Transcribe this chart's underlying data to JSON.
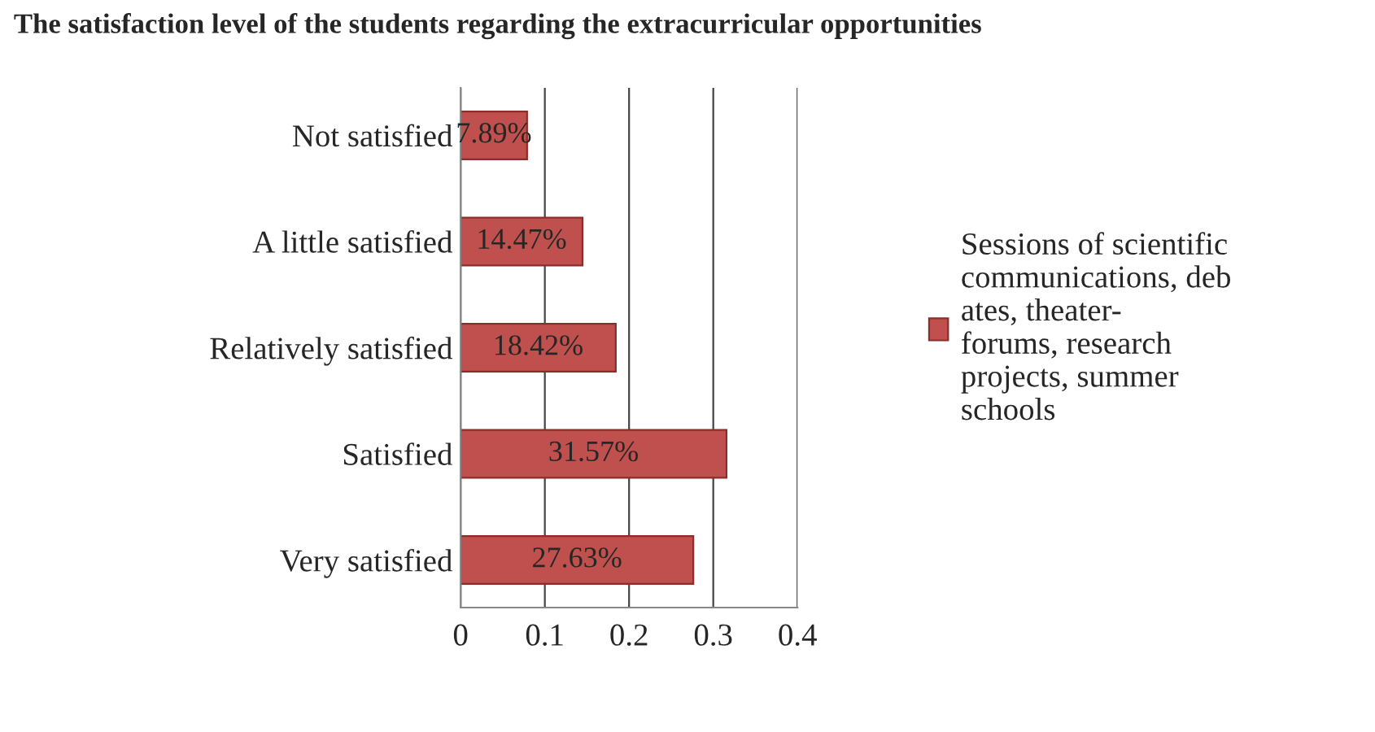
{
  "chart_data": {
    "type": "bar",
    "orientation": "horizontal",
    "title": "The satisfaction level of the students regarding the extracurricular opportunities",
    "categories": [
      "Not satisfied",
      "A little satisfied",
      "Relatively satisfied",
      "Satisfied",
      "Very satisfied"
    ],
    "series": [
      {
        "name": "Sessions of scientific\ncommunications, deb\nates, theater-\nforums, research\nprojects, summer\nschools",
        "color": "#c0504d",
        "values": [
          0.0789,
          0.1447,
          0.1842,
          0.3157,
          0.2763
        ],
        "value_labels": [
          "7.89%",
          "14.47%",
          "18.42%",
          "31.57%",
          "27.63%"
        ]
      }
    ],
    "xlim": [
      0,
      0.4
    ],
    "xticks": [
      0,
      0.1,
      0.2,
      0.3,
      0.4
    ],
    "grid": "x",
    "legend": "right"
  }
}
